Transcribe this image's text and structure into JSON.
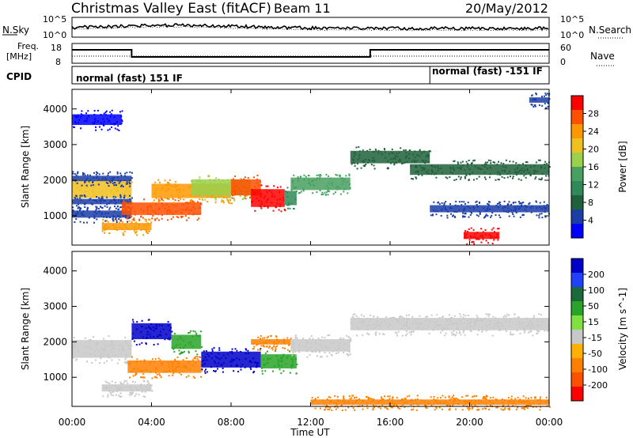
{
  "header": {
    "title": "Christmas Valley East (fitACF)",
    "beam": "Beam 11",
    "date": "20/May/2012"
  },
  "status_panels": {
    "nsky_label": "N.Sky",
    "nsearch_label": "N.Search",
    "noise_left_ticks": [
      "10^5",
      "10^0"
    ],
    "noise_right_ticks": [
      "10^5",
      "10^0"
    ],
    "freq_label_line1": "Freq.",
    "freq_label_line2": "[MHz]",
    "freq_ticks": [
      "18",
      "8"
    ],
    "nave_label": "Nave",
    "nave_ticks": [
      "60",
      "0"
    ],
    "cpid_label": "CPID",
    "cpid_1": "normal (fast) 151 IF",
    "cpid_2": "normal (fast) -151 IF",
    "cpid_change_hour": 18.0,
    "freq_steps": [
      {
        "from": 0,
        "to": 3,
        "level": "high"
      },
      {
        "from": 3,
        "to": 15,
        "level": "low"
      },
      {
        "from": 15,
        "to": 24,
        "level": "high"
      }
    ]
  },
  "power_colorbar": {
    "label": "Power [dB]",
    "ticks": [
      "28",
      "24",
      "20",
      "16",
      "12",
      "8",
      "4"
    ],
    "colors": [
      "#ff0000",
      "#ff5000",
      "#ff9800",
      "#f0c020",
      "#9ad04a",
      "#48a060",
      "#2e8b57",
      "#20603a",
      "#1a3da8",
      "#0000ff"
    ]
  },
  "velocity_colorbar": {
    "label": "Velocity [m s^-1]",
    "ticks": [
      "200",
      "100",
      "50",
      "15",
      "-15",
      "-50",
      "-100",
      "-200"
    ],
    "colors": [
      "#0000c8",
      "#2040ff",
      "#1a6a3a",
      "#28a428",
      "#80e040",
      "#c8c8c8",
      "#ffb000",
      "#ff8000",
      "#ff5000",
      "#ff0000"
    ]
  },
  "axes": {
    "ylabel": "Slant Range [km]",
    "xlabel": "Time UT",
    "y_ticks": [
      "1000",
      "2000",
      "3000",
      "4000"
    ],
    "x_ticks": [
      "00:00",
      "04:00",
      "08:00",
      "12:00",
      "16:00",
      "20:00",
      "00:00"
    ]
  },
  "chart_data": {
    "type": "heatmap",
    "title": "Christmas Valley East (fitACF)",
    "xlabel": "Time UT",
    "ylabel": "Slant Range [km]",
    "x_range_hours": [
      0,
      24
    ],
    "y_range_km": [
      180,
      4550
    ],
    "panels": [
      {
        "name": "Power",
        "units": "dB",
        "color_ticks": [
          4,
          8,
          12,
          16,
          20,
          24,
          28
        ],
        "features": [
          {
            "t0": 0.0,
            "t1": 3.0,
            "r_center": 1750,
            "r_width": 500,
            "value": 18
          },
          {
            "t0": 0.0,
            "t1": 3.0,
            "r_center": 2050,
            "r_width": 150,
            "value": 6
          },
          {
            "t0": 0.0,
            "t1": 3.0,
            "r_center": 1400,
            "r_width": 150,
            "value": 6
          },
          {
            "t0": 0.0,
            "t1": 2.5,
            "r_center": 3700,
            "r_width": 300,
            "value": 4
          },
          {
            "t0": 0.0,
            "t1": 3.0,
            "r_center": 1050,
            "r_width": 200,
            "value": 6
          },
          {
            "t0": 1.5,
            "t1": 4.0,
            "r_center": 700,
            "r_width": 200,
            "value": 24
          },
          {
            "t0": 2.5,
            "t1": 6.5,
            "r_center": 1200,
            "r_width": 350,
            "value": 28
          },
          {
            "t0": 4.0,
            "t1": 8.0,
            "r_center": 1700,
            "r_width": 400,
            "value": 22
          },
          {
            "t0": 6.0,
            "t1": 9.0,
            "r_center": 1800,
            "r_width": 450,
            "value": 16
          },
          {
            "t0": 8.0,
            "t1": 9.5,
            "r_center": 1800,
            "r_width": 450,
            "value": 26
          },
          {
            "t0": 9.0,
            "t1": 10.7,
            "r_center": 1500,
            "r_width": 500,
            "value": 30
          },
          {
            "t0": 10.7,
            "t1": 11.3,
            "r_center": 1500,
            "r_width": 400,
            "value": 10
          },
          {
            "t0": 11.0,
            "t1": 14.0,
            "r_center": 1900,
            "r_width": 350,
            "value": 12
          },
          {
            "t0": 14.0,
            "t1": 18.0,
            "r_center": 2650,
            "r_width": 350,
            "value": 8
          },
          {
            "t0": 17.0,
            "t1": 24.0,
            "r_center": 2300,
            "r_width": 300,
            "value": 8
          },
          {
            "t0": 18.0,
            "t1": 24.0,
            "r_center": 1200,
            "r_width": 200,
            "value": 6
          },
          {
            "t0": 19.7,
            "t1": 21.5,
            "r_center": 450,
            "r_width": 200,
            "value": 30
          },
          {
            "t0": 23.0,
            "t1": 24.0,
            "r_center": 4250,
            "r_width": 150,
            "value": 6
          }
        ]
      },
      {
        "name": "Velocity",
        "units": "m s^-1",
        "color_ticks": [
          -200,
          -100,
          -50,
          -15,
          15,
          50,
          100,
          200
        ],
        "features": [
          {
            "t0": 0.0,
            "t1": 3.0,
            "r_center": 1800,
            "r_width": 500,
            "value": 0
          },
          {
            "t0": 1.5,
            "t1": 4.0,
            "r_center": 700,
            "r_width": 200,
            "value": 0
          },
          {
            "t0": 2.8,
            "t1": 6.5,
            "r_center": 1300,
            "r_width": 350,
            "value": -60
          },
          {
            "t0": 3.0,
            "t1": 5.0,
            "r_center": 2300,
            "r_width": 450,
            "value": 200
          },
          {
            "t0": 5.0,
            "t1": 6.5,
            "r_center": 2000,
            "r_width": 400,
            "value": 30
          },
          {
            "t0": 6.5,
            "t1": 9.5,
            "r_center": 1500,
            "r_width": 450,
            "value": 200
          },
          {
            "t0": 9.5,
            "t1": 11.3,
            "r_center": 1450,
            "r_width": 400,
            "value": 40
          },
          {
            "t0": 9.0,
            "t1": 11.0,
            "r_center": 2000,
            "r_width": 150,
            "value": -60
          },
          {
            "t0": 11.0,
            "t1": 14.0,
            "r_center": 1900,
            "r_width": 350,
            "value": 0
          },
          {
            "t0": 14.0,
            "t1": 24.0,
            "r_center": 2500,
            "r_width": 350,
            "value": 0
          },
          {
            "t0": 12.0,
            "t1": 24.0,
            "r_center": 300,
            "r_width": 150,
            "value": -60
          }
        ]
      }
    ]
  }
}
